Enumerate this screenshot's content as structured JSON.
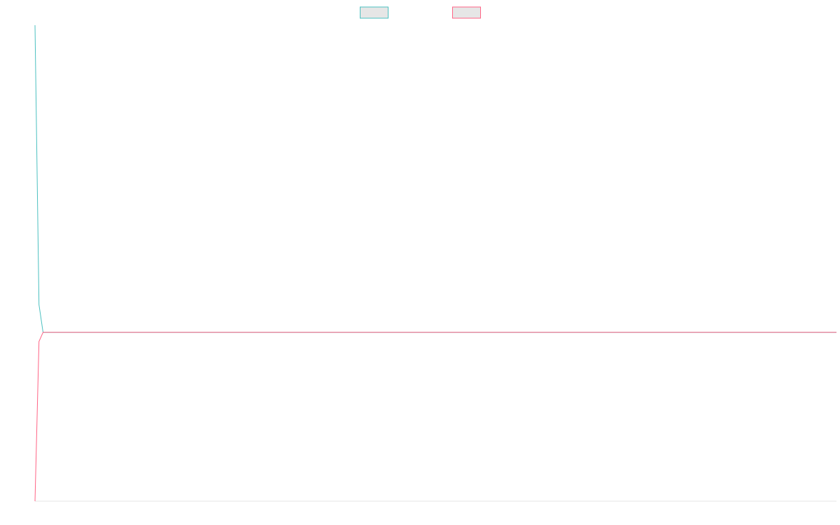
{
  "chart_data": {
    "type": "line",
    "title": "",
    "xlabel": "",
    "ylabel": "",
    "x": [
      0,
      1,
      2,
      200
    ],
    "series": [
      {
        "name": "",
        "color": "#4bc0c0",
        "values": [
          1000,
          90,
          0,
          0
        ]
      },
      {
        "name": "",
        "color": "#ff6384",
        "values": [
          -550,
          -30,
          0,
          0
        ]
      }
    ],
    "xlim": [
      0,
      200
    ],
    "ylim": [
      -550,
      1000
    ],
    "grid": false,
    "legend": "top-center"
  }
}
